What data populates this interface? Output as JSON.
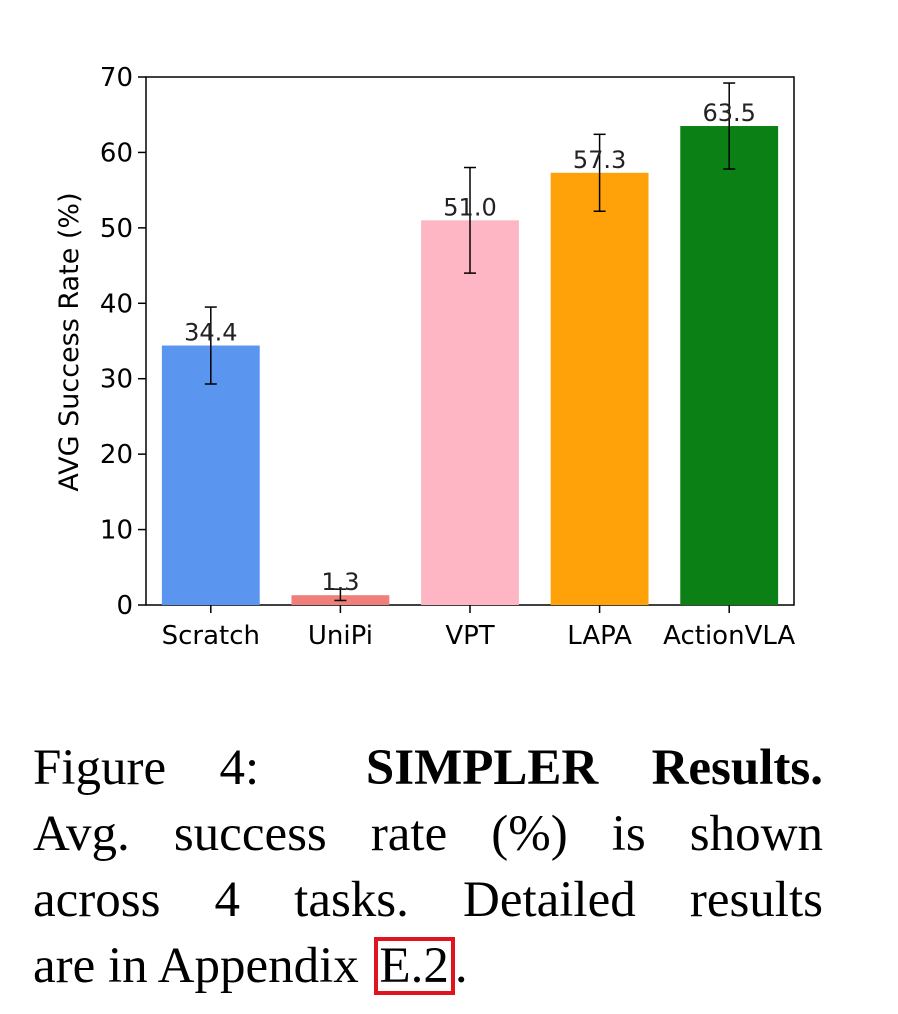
{
  "chart_data": {
    "type": "bar",
    "categories": [
      "Scratch",
      "UniPi",
      "VPT",
      "LAPA",
      "ActionVLA"
    ],
    "values": [
      34.4,
      1.3,
      51.0,
      57.3,
      63.5
    ],
    "value_labels": [
      "34.4",
      "1.3",
      "51.0",
      "57.3",
      "63.5"
    ],
    "error_bars": [
      {
        "low": 29.3,
        "high": 39.5
      },
      {
        "low": 0.6,
        "high": 2.1
      },
      {
        "low": 44.0,
        "high": 58.0
      },
      {
        "low": 52.2,
        "high": 62.4
      },
      {
        "low": 57.8,
        "high": 69.2
      }
    ],
    "colors": [
      "#5a96ef",
      "#f07f7b",
      "#ffb6c4",
      "#ffa20a",
      "#0b8014"
    ],
    "title": "",
    "xlabel": "",
    "ylabel": "AVG Success Rate (%)",
    "ylim": [
      0,
      70
    ],
    "yticks": [
      "0",
      "10",
      "20",
      "30",
      "40",
      "50",
      "60",
      "70"
    ],
    "grid": false
  },
  "caption": {
    "prefix": "Figure 4:",
    "bold_title": "SIMPLER Results.",
    "line2": "Avg. success rate (%) is shown",
    "line3": "across 4 tasks. Detailed results",
    "line4_start": "are in Appendix",
    "ref": "E.2",
    "line4_end": "."
  }
}
